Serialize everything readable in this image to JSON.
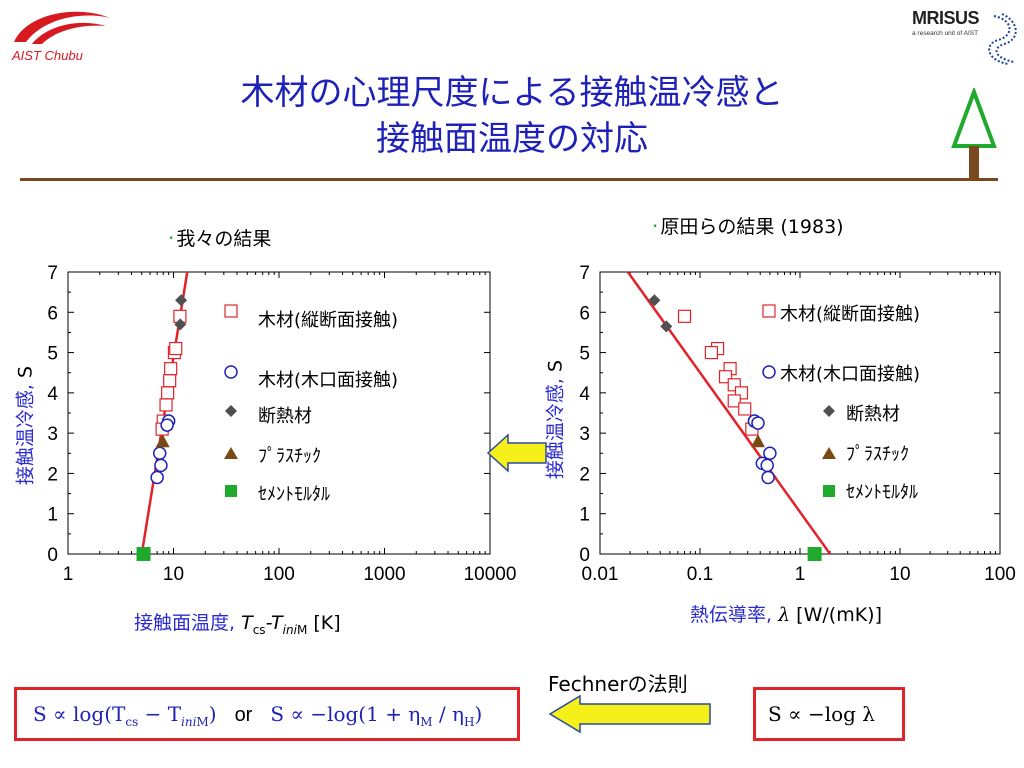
{
  "header": {
    "logo_left_text": "AIST Chubu",
    "logo_right_name": "MRISUS",
    "logo_right_sub": "a research unit of AIST",
    "title_line1": "木材の心理尺度による接触温冷感と",
    "title_line2": "接触面温度の対応"
  },
  "left_section": {
    "label": "我々の結果",
    "ylabel_main": "接触温冷感, ",
    "ylabel_unit": "S",
    "xlabel_main": "接触面温度, ",
    "xlabel_sym": "T",
    "xlabel_sub1": "cs",
    "xlabel_mid": "-T",
    "xlabel_sub2": "ini",
    "xlabel_sub2b": "M",
    "xlabel_unit": " [K]"
  },
  "right_section": {
    "label": "原田らの結果 (1983)",
    "ylabel_main": "接触温冷感, ",
    "ylabel_unit": "S",
    "xlabel_main": "熱伝導率, ",
    "xlabel_sym": "λ",
    "xlabel_unit": " [W/(mK)]"
  },
  "legend": [
    {
      "label": "木材(縦断面接触)",
      "marker": "square-open",
      "color": "#e0242a"
    },
    {
      "label": "木材(木口面接触)",
      "marker": "circle-open",
      "color": "#1f22b8"
    },
    {
      "label": "断熱材",
      "marker": "diamond",
      "color": "#505050"
    },
    {
      "label": "ﾌﾟﾗｽﾁｯｸ",
      "marker": "triangle",
      "color": "#7a4a14"
    },
    {
      "label": "ｾﾒﾝﾄﾓﾙﾀﾙ",
      "marker": "square",
      "color": "#1faa2e"
    }
  ],
  "bottom": {
    "fechner_label": "Fechnerの法則",
    "formula_left_1": "S ∝ log(T",
    "formula_left_1_sub1": "cs",
    "formula_left_1_mid": " − T",
    "formula_left_1_sub2": "ini",
    "formula_left_1_sub2b": "M",
    "formula_left_1_end": ")",
    "or_text": "or",
    "formula_left_2": "S ∝ −log(1 + η",
    "formula_left_2_sub1": "M",
    "formula_left_2_mid": " / η",
    "formula_left_2_sub2": "H",
    "formula_left_2_end": ")",
    "formula_right": "S ∝ −log λ"
  },
  "colors": {
    "title": "#1f22b8",
    "rule": "#7a4a1e",
    "fit_line": "#e0242a",
    "arrow_fill": "#f5f01a",
    "arrow_stroke": "#2a4aa0",
    "box_border": "#e0242a"
  },
  "chart_data": [
    {
      "type": "scatter",
      "xscale": "log",
      "xlim": [
        1,
        10000
      ],
      "ylim": [
        0,
        7
      ],
      "xticks": [
        "1",
        "10",
        "100",
        "1000",
        "10000"
      ],
      "yticks": [
        "0",
        "1",
        "2",
        "3",
        "4",
        "5",
        "6",
        "7"
      ],
      "series": [
        {
          "name": "木材(縦断面接触)",
          "marker": "square-open",
          "points": [
            [
              11.5,
              5.9
            ],
            [
              10.2,
              5.0
            ],
            [
              10.5,
              5.1
            ],
            [
              9.4,
              4.6
            ],
            [
              9.2,
              4.3
            ],
            [
              8.8,
              4.0
            ],
            [
              8.5,
              3.7
            ],
            [
              8.0,
              3.3
            ],
            [
              7.8,
              3.1
            ]
          ]
        },
        {
          "name": "木材(木口面接触)",
          "marker": "circle-open",
          "points": [
            [
              9.0,
              3.3
            ],
            [
              8.7,
              3.2
            ],
            [
              7.4,
              2.5
            ],
            [
              7.6,
              2.2
            ],
            [
              7.0,
              1.9
            ]
          ]
        },
        {
          "name": "断熱材",
          "marker": "diamond",
          "points": [
            [
              11.8,
              6.3
            ],
            [
              11.6,
              5.7
            ]
          ]
        },
        {
          "name": "ﾌﾟﾗｽﾁｯｸ",
          "marker": "triangle",
          "points": [
            [
              7.9,
              2.8
            ]
          ]
        },
        {
          "name": "ｾﾒﾝﾄﾓﾙﾀﾙ",
          "marker": "square",
          "points": [
            [
              5.2,
              0.0
            ]
          ]
        }
      ],
      "fit_line": [
        [
          5.0,
          0.0
        ],
        [
          13.5,
          7.0
        ]
      ]
    },
    {
      "type": "scatter",
      "xscale": "log",
      "xlim": [
        0.01,
        100
      ],
      "ylim": [
        0,
        7
      ],
      "xticks": [
        "0.01",
        "0.1",
        "1",
        "10",
        "100"
      ],
      "yticks": [
        "0",
        "1",
        "2",
        "3",
        "4",
        "5",
        "6",
        "7"
      ],
      "series": [
        {
          "name": "木材(縦断面接触)",
          "marker": "square-open",
          "points": [
            [
              0.07,
              5.9
            ],
            [
              0.15,
              5.1
            ],
            [
              0.13,
              5.0
            ],
            [
              0.2,
              4.6
            ],
            [
              0.18,
              4.4
            ],
            [
              0.22,
              4.2
            ],
            [
              0.26,
              4.0
            ],
            [
              0.22,
              3.8
            ],
            [
              0.28,
              3.6
            ],
            [
              0.33,
              3.1
            ]
          ]
        },
        {
          "name": "木材(木口面接触)",
          "marker": "circle-open",
          "points": [
            [
              0.35,
              3.3
            ],
            [
              0.38,
              3.25
            ],
            [
              0.5,
              2.5
            ],
            [
              0.42,
              2.25
            ],
            [
              0.47,
              2.2
            ],
            [
              0.48,
              1.9
            ]
          ]
        },
        {
          "name": "断熱材",
          "marker": "diamond",
          "points": [
            [
              0.035,
              6.3
            ],
            [
              0.046,
              5.65
            ]
          ]
        },
        {
          "name": "ﾌﾟﾗｽﾁｯｸ",
          "marker": "triangle",
          "points": [
            [
              0.38,
              2.8
            ]
          ]
        },
        {
          "name": "ｾﾒﾝﾄﾓﾙﾀﾙ",
          "marker": "square",
          "points": [
            [
              1.4,
              0.0
            ]
          ]
        }
      ],
      "fit_line": [
        [
          0.019,
          7.0
        ],
        [
          2.0,
          0.0
        ]
      ]
    }
  ]
}
